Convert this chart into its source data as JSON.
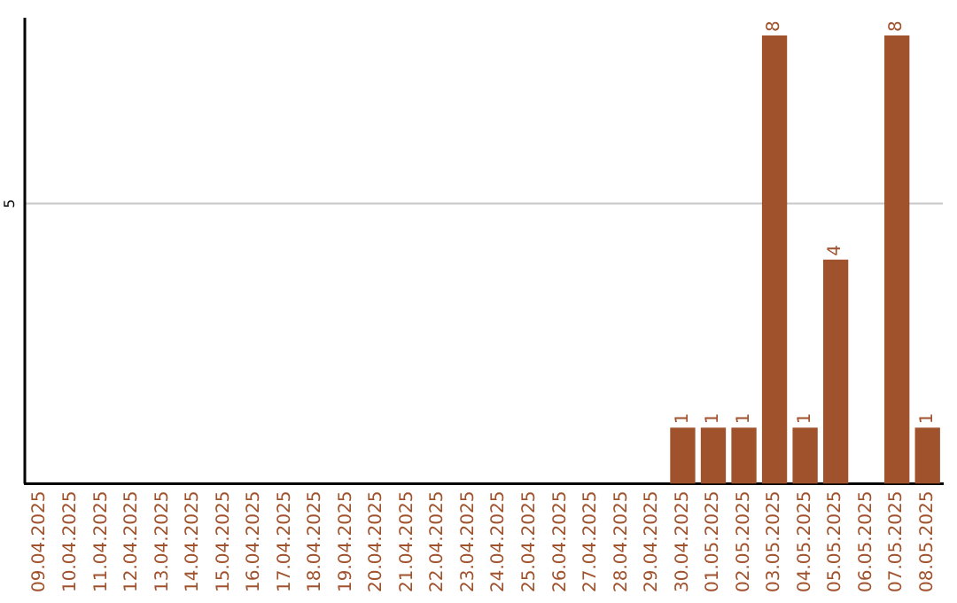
{
  "chart_data": {
    "type": "bar",
    "categories": [
      "09.04.2025",
      "10.04.2025",
      "11.04.2025",
      "12.04.2025",
      "13.04.2025",
      "14.04.2025",
      "15.04.2025",
      "16.04.2025",
      "17.04.2025",
      "18.04.2025",
      "19.04.2025",
      "20.04.2025",
      "21.04.2025",
      "22.04.2025",
      "23.04.2025",
      "24.04.2025",
      "25.04.2025",
      "26.04.2025",
      "27.04.2025",
      "28.04.2025",
      "29.04.2025",
      "30.04.2025",
      "01.05.2025",
      "02.05.2025",
      "03.05.2025",
      "04.05.2025",
      "05.05.2025",
      "06.05.2025",
      "07.05.2025",
      "08.05.2025"
    ],
    "values": [
      null,
      null,
      null,
      null,
      null,
      null,
      null,
      null,
      null,
      null,
      null,
      null,
      null,
      null,
      null,
      null,
      null,
      null,
      null,
      null,
      null,
      1,
      1,
      1,
      8,
      1,
      4,
      null,
      8,
      1
    ],
    "data_labels": true,
    "color": "#a0522d",
    "ref_lines": [
      {
        "axis": "y",
        "value": 5,
        "label": "5",
        "color": "#c8c8c8"
      }
    ],
    "legend": false
  }
}
